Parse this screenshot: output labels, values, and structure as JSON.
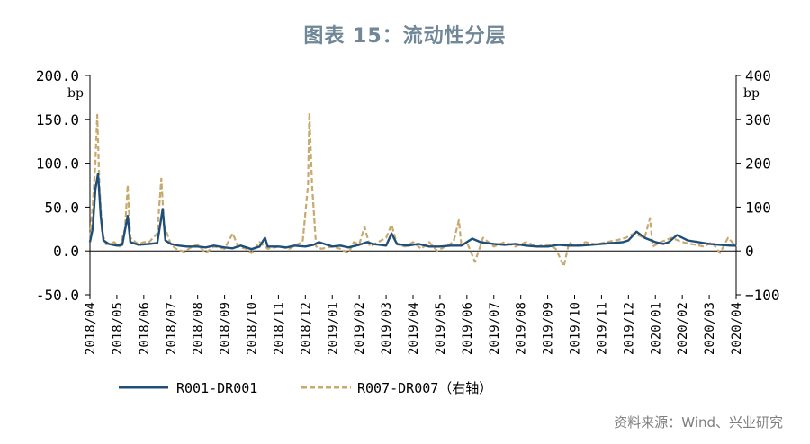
{
  "page": {
    "title": "图表 15：流动性分层",
    "source": "资料来源：Wind、兴业研究"
  },
  "chart_data": {
    "type": "line",
    "title": "图表 15：流动性分层",
    "left_axis": {
      "unit": "bp",
      "ylim": [
        -50,
        200
      ],
      "ticks": [
        "-50.0",
        "0.0",
        "50.0",
        "100.0",
        "150.0",
        "200.0"
      ]
    },
    "right_axis": {
      "unit": "bp",
      "ylim": [
        -100,
        400
      ],
      "ticks": [
        "−100",
        "0",
        "100",
        "200",
        "300",
        "400"
      ]
    },
    "x_ticks": [
      "2018/04",
      "2018/05",
      "2018/06",
      "2018/07",
      "2018/08",
      "2018/09",
      "2018/10",
      "2018/11",
      "2018/12",
      "2019/01",
      "2019/02",
      "2019/03",
      "2019/04",
      "2019/05",
      "2019/06",
      "2019/07",
      "2019/08",
      "2019/09",
      "2019/10",
      "2019/11",
      "2019/12",
      "2020/01",
      "2020/02",
      "2020/03",
      "2020/04"
    ],
    "grid": false,
    "legend_position": "bottom",
    "series": [
      {
        "name": "R001-DR001",
        "axis": "left",
        "color": "#1f4e79",
        "style": "solid",
        "points": [
          [
            0.0,
            10
          ],
          [
            0.1,
            25
          ],
          [
            0.2,
            70
          ],
          [
            0.3,
            88
          ],
          [
            0.4,
            40
          ],
          [
            0.5,
            12
          ],
          [
            0.7,
            8
          ],
          [
            1.0,
            6
          ],
          [
            1.2,
            7
          ],
          [
            1.4,
            40
          ],
          [
            1.5,
            10
          ],
          [
            1.8,
            7
          ],
          [
            2.2,
            8
          ],
          [
            2.5,
            9
          ],
          [
            2.7,
            48
          ],
          [
            2.8,
            12
          ],
          [
            3.0,
            8
          ],
          [
            3.3,
            6
          ],
          [
            3.6,
            5
          ],
          [
            4.0,
            5
          ],
          [
            4.3,
            4
          ],
          [
            4.6,
            6
          ],
          [
            5.0,
            4
          ],
          [
            5.3,
            3
          ],
          [
            5.6,
            6
          ],
          [
            6.0,
            2
          ],
          [
            6.3,
            5
          ],
          [
            6.5,
            15
          ],
          [
            6.6,
            5
          ],
          [
            7.0,
            5
          ],
          [
            7.3,
            4
          ],
          [
            7.6,
            6
          ],
          [
            8.0,
            5
          ],
          [
            8.3,
            7
          ],
          [
            8.5,
            10
          ],
          [
            8.7,
            8
          ],
          [
            9.0,
            5
          ],
          [
            9.3,
            6
          ],
          [
            9.6,
            4
          ],
          [
            10.0,
            7
          ],
          [
            10.3,
            10
          ],
          [
            10.5,
            8
          ],
          [
            11.0,
            6
          ],
          [
            11.2,
            20
          ],
          [
            11.4,
            8
          ],
          [
            11.8,
            6
          ],
          [
            12.2,
            8
          ],
          [
            12.6,
            5
          ],
          [
            13.0,
            5
          ],
          [
            13.4,
            6
          ],
          [
            13.8,
            6
          ],
          [
            14.2,
            14
          ],
          [
            14.5,
            10
          ],
          [
            15.0,
            8
          ],
          [
            15.4,
            7
          ],
          [
            15.8,
            8
          ],
          [
            16.2,
            6
          ],
          [
            16.6,
            5
          ],
          [
            17.0,
            5
          ],
          [
            17.4,
            7
          ],
          [
            17.8,
            6
          ],
          [
            18.2,
            6
          ],
          [
            18.6,
            7
          ],
          [
            19.0,
            8
          ],
          [
            19.4,
            9
          ],
          [
            19.8,
            10
          ],
          [
            20.0,
            12
          ],
          [
            20.3,
            22
          ],
          [
            20.6,
            15
          ],
          [
            21.0,
            10
          ],
          [
            21.3,
            8
          ],
          [
            21.5,
            10
          ],
          [
            21.8,
            18
          ],
          [
            22.2,
            12
          ],
          [
            22.6,
            10
          ],
          [
            23.0,
            8
          ],
          [
            23.4,
            7
          ],
          [
            23.8,
            6
          ],
          [
            24.0,
            6
          ]
        ]
      },
      {
        "name": "R007-DR007（右轴）",
        "axis": "right",
        "color": "#c8a96e",
        "style": "dashed",
        "points": [
          [
            0.0,
            30
          ],
          [
            0.1,
            100
          ],
          [
            0.2,
            200
          ],
          [
            0.27,
            310
          ],
          [
            0.35,
            150
          ],
          [
            0.45,
            40
          ],
          [
            0.6,
            15
          ],
          [
            0.9,
            20
          ],
          [
            1.1,
            10
          ],
          [
            1.3,
            50
          ],
          [
            1.4,
            150
          ],
          [
            1.5,
            30
          ],
          [
            1.8,
            15
          ],
          [
            2.0,
            20
          ],
          [
            2.2,
            20
          ],
          [
            2.5,
            40
          ],
          [
            2.65,
            165
          ],
          [
            2.75,
            60
          ],
          [
            3.0,
            15
          ],
          [
            3.2,
            5
          ],
          [
            3.5,
            -2
          ],
          [
            3.8,
            10
          ],
          [
            4.0,
            15
          ],
          [
            4.3,
            -5
          ],
          [
            4.6,
            10
          ],
          [
            5.0,
            5
          ],
          [
            5.3,
            40
          ],
          [
            5.5,
            10
          ],
          [
            5.8,
            5
          ],
          [
            6.0,
            -5
          ],
          [
            6.3,
            20
          ],
          [
            6.6,
            5
          ],
          [
            7.0,
            10
          ],
          [
            7.4,
            5
          ],
          [
            7.7,
            15
          ],
          [
            7.9,
            20
          ],
          [
            8.1,
            150
          ],
          [
            8.15,
            315
          ],
          [
            8.25,
            150
          ],
          [
            8.4,
            10
          ],
          [
            8.6,
            5
          ],
          [
            9.0,
            10
          ],
          [
            9.3,
            5
          ],
          [
            9.6,
            -5
          ],
          [
            9.8,
            20
          ],
          [
            10.0,
            15
          ],
          [
            10.2,
            55
          ],
          [
            10.4,
            10
          ],
          [
            10.7,
            20
          ],
          [
            11.0,
            30
          ],
          [
            11.2,
            60
          ],
          [
            11.4,
            15
          ],
          [
            11.7,
            10
          ],
          [
            12.0,
            20
          ],
          [
            12.3,
            5
          ],
          [
            12.6,
            20
          ],
          [
            12.9,
            0
          ],
          [
            13.2,
            10
          ],
          [
            13.5,
            20
          ],
          [
            13.7,
            70
          ],
          [
            13.8,
            10
          ],
          [
            14.0,
            20
          ],
          [
            14.3,
            -25
          ],
          [
            14.6,
            30
          ],
          [
            15.0,
            10
          ],
          [
            15.4,
            20
          ],
          [
            15.8,
            10
          ],
          [
            16.2,
            20
          ],
          [
            16.6,
            10
          ],
          [
            17.0,
            15
          ],
          [
            17.3,
            5
          ],
          [
            17.6,
            -35
          ],
          [
            17.8,
            20
          ],
          [
            18.0,
            10
          ],
          [
            18.4,
            20
          ],
          [
            18.8,
            15
          ],
          [
            19.2,
            20
          ],
          [
            19.6,
            25
          ],
          [
            19.9,
            30
          ],
          [
            20.2,
            40
          ],
          [
            20.6,
            30
          ],
          [
            20.8,
            75
          ],
          [
            20.9,
            10
          ],
          [
            21.2,
            20
          ],
          [
            21.6,
            30
          ],
          [
            22.0,
            20
          ],
          [
            22.4,
            15
          ],
          [
            22.8,
            10
          ],
          [
            23.1,
            20
          ],
          [
            23.4,
            -5
          ],
          [
            23.7,
            30
          ],
          [
            24.0,
            10
          ]
        ]
      }
    ]
  }
}
